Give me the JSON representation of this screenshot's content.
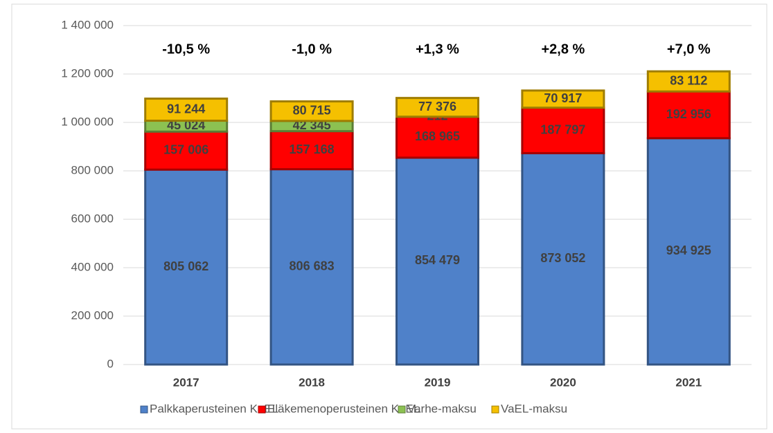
{
  "chart_data": {
    "type": "stacked_bar",
    "categories": [
      "2017",
      "2018",
      "2019",
      "2020",
      "2021"
    ],
    "series": [
      {
        "name": "Palkkaperusteinen KuEL",
        "color": "#4f81c9",
        "values": [
          805062,
          806683,
          854479,
          873052,
          934925
        ],
        "value_labels": [
          "805 062",
          "806 683",
          "854 479",
          "873 052",
          "934 925"
        ]
      },
      {
        "name": "Eläkemenoperusteinen KuEL",
        "color": "#ff0000",
        "values": [
          157006,
          157168,
          168965,
          187797,
          192956
        ],
        "value_labels": [
          "157 006",
          "157 168",
          "168 965",
          "187 797",
          "192 956"
        ]
      },
      {
        "name": "Varhe-maksu",
        "color": "#8cc152",
        "values": [
          45024,
          42345,
          212,
          null,
          null
        ],
        "value_labels": [
          "45 024",
          "42 345",
          "212",
          null,
          null
        ]
      },
      {
        "name": "VaEL-maksu",
        "color": "#f5c000",
        "values": [
          91244,
          80715,
          77376,
          70917,
          83112
        ],
        "value_labels": [
          "91 244",
          "80 715",
          "77 376",
          "70 917",
          "83 112"
        ]
      }
    ],
    "annotations": [
      "-10,5 %",
      "-1,0 %",
      "+1,3 %",
      "+2,8 %",
      "+7,0 %"
    ],
    "ylim": [
      0,
      1400000
    ],
    "yticks": [
      0,
      {
        "value": 200000,
        "label": "200 000"
      },
      {
        "value": 400000,
        "label": "400 000"
      },
      {
        "value": 600000,
        "label": "600 000"
      },
      {
        "value": 800000,
        "label": "800 000"
      },
      {
        "value": 1000000,
        "label": "1 000 000"
      },
      {
        "value": 1200000,
        "label": "1 200 000"
      },
      {
        "value": 1400000,
        "label": "1 400 000"
      }
    ],
    "grid": true,
    "legend": "bottom"
  }
}
